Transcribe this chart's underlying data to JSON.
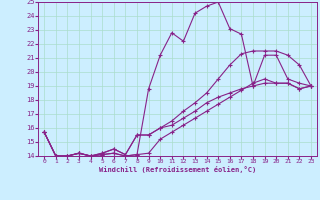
{
  "xlabel": "Windchill (Refroidissement éolien,°C)",
  "xlim": [
    -0.5,
    23.5
  ],
  "ylim": [
    14,
    25
  ],
  "xticks": [
    0,
    1,
    2,
    3,
    4,
    5,
    6,
    7,
    8,
    9,
    10,
    11,
    12,
    13,
    14,
    15,
    16,
    17,
    18,
    19,
    20,
    21,
    22,
    23
  ],
  "yticks": [
    14,
    15,
    16,
    17,
    18,
    19,
    20,
    21,
    22,
    23,
    24,
    25
  ],
  "bg_color": "#cceeff",
  "grid_color": "#aaddcc",
  "line_color": "#882288",
  "lines": [
    {
      "x": [
        0,
        1,
        2,
        3,
        4,
        5,
        6,
        7,
        8,
        9,
        10,
        11,
        12,
        13,
        14,
        15,
        16,
        17,
        18,
        19,
        20,
        21,
        22,
        23
      ],
      "y": [
        15.7,
        14.0,
        14.0,
        14.2,
        14.0,
        14.1,
        14.2,
        14.0,
        14.1,
        18.8,
        21.2,
        22.8,
        22.2,
        24.2,
        24.7,
        25.0,
        23.1,
        22.7,
        19.0,
        21.2,
        21.2,
        19.5,
        19.2,
        19.0
      ]
    },
    {
      "x": [
        0,
        1,
        2,
        3,
        4,
        5,
        6,
        7,
        8,
        9,
        10,
        11,
        12,
        13,
        14,
        15,
        16,
        17,
        18,
        19,
        20,
        21,
        22,
        23
      ],
      "y": [
        15.7,
        14.0,
        14.0,
        14.2,
        14.0,
        14.2,
        14.5,
        14.1,
        15.5,
        15.5,
        16.0,
        16.5,
        17.2,
        17.8,
        18.5,
        19.5,
        20.5,
        21.3,
        21.5,
        21.5,
        21.5,
        21.2,
        20.5,
        19.0
      ]
    },
    {
      "x": [
        0,
        1,
        2,
        3,
        4,
        5,
        6,
        7,
        8,
        9,
        10,
        11,
        12,
        13,
        14,
        15,
        16,
        17,
        18,
        19,
        20,
        21,
        22,
        23
      ],
      "y": [
        15.7,
        14.0,
        14.0,
        14.2,
        14.0,
        14.2,
        14.5,
        14.1,
        15.5,
        15.5,
        16.0,
        16.2,
        16.7,
        17.2,
        17.8,
        18.2,
        18.5,
        18.8,
        19.0,
        19.2,
        19.2,
        19.2,
        18.8,
        19.0
      ]
    },
    {
      "x": [
        0,
        1,
        2,
        3,
        4,
        5,
        6,
        7,
        8,
        9,
        10,
        11,
        12,
        13,
        14,
        15,
        16,
        17,
        18,
        19,
        20,
        21,
        22,
        23
      ],
      "y": [
        15.7,
        14.0,
        14.0,
        14.2,
        14.0,
        14.1,
        14.2,
        14.0,
        14.1,
        14.2,
        15.2,
        15.7,
        16.2,
        16.7,
        17.2,
        17.7,
        18.2,
        18.7,
        19.2,
        19.5,
        19.2,
        19.2,
        18.8,
        19.0
      ]
    }
  ]
}
